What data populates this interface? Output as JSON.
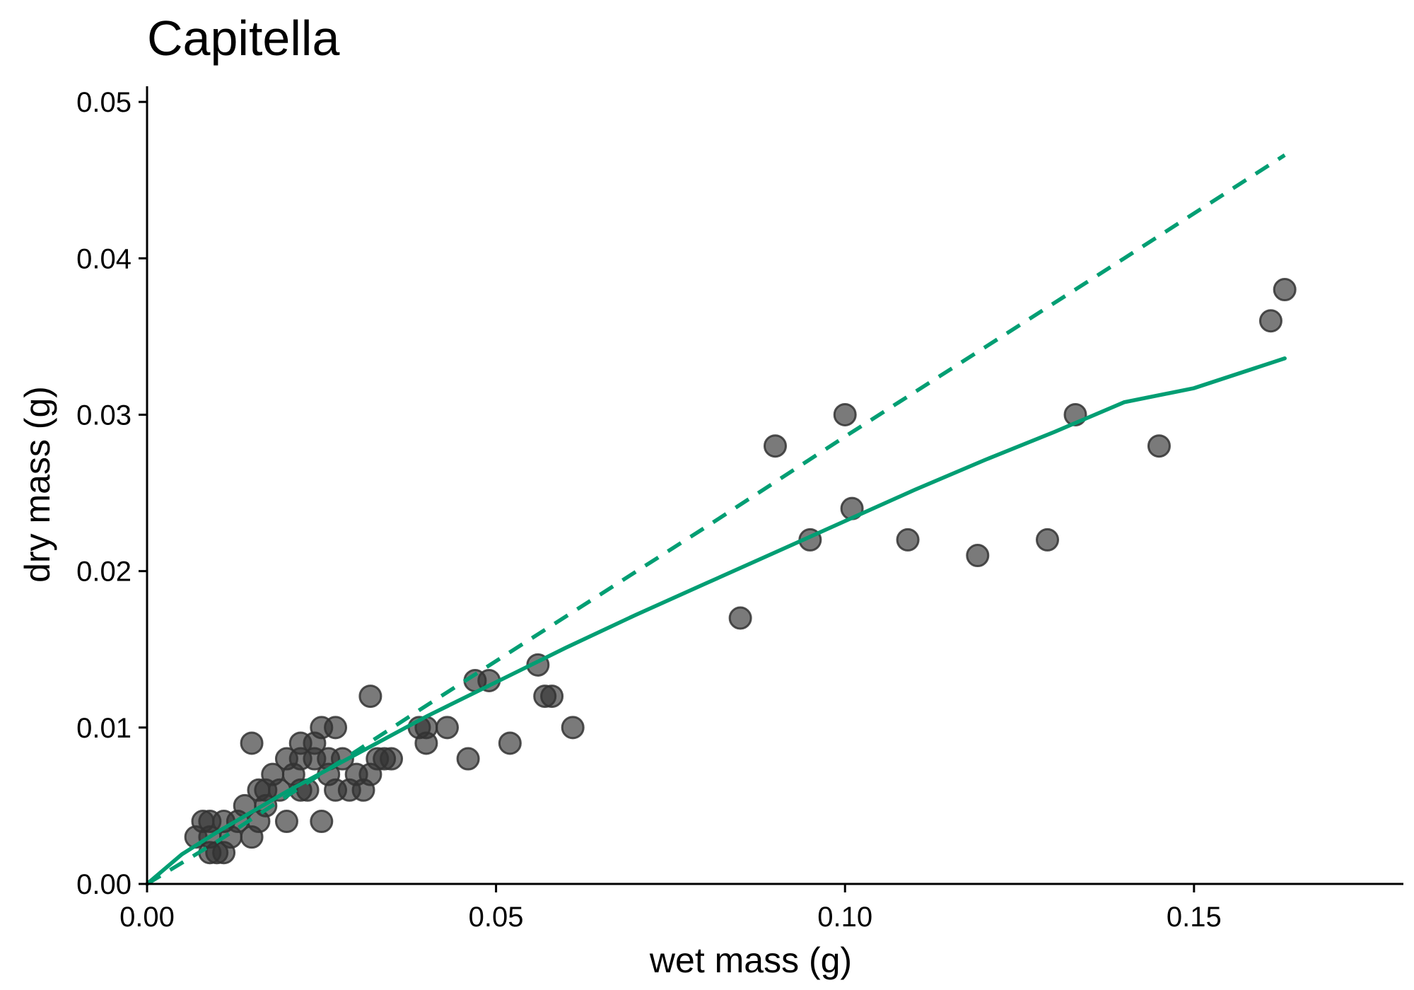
{
  "chart_data": {
    "type": "scatter",
    "title": "Capitella",
    "xlabel": "wet mass (g)",
    "ylabel": "dry mass (g)",
    "xlim": [
      0,
      0.18
    ],
    "ylim": [
      0,
      0.051
    ],
    "x_ticks": [
      0.0,
      0.05,
      0.1,
      0.15
    ],
    "x_tick_labels": [
      "0.00",
      "0.05",
      "0.10",
      "0.15"
    ],
    "y_ticks": [
      0.0,
      0.01,
      0.02,
      0.03,
      0.04,
      0.05
    ],
    "y_tick_labels": [
      "0.00",
      "0.01",
      "0.02",
      "0.03",
      "0.04",
      "0.05"
    ],
    "grid": false,
    "colors": {
      "points": "#333333",
      "fit_line": "#009E73"
    },
    "series": [
      {
        "type": "scatter",
        "points": [
          [
            0.007,
            0.003
          ],
          [
            0.008,
            0.004
          ],
          [
            0.009,
            0.004
          ],
          [
            0.009,
            0.003
          ],
          [
            0.009,
            0.002
          ],
          [
            0.01,
            0.002
          ],
          [
            0.011,
            0.004
          ],
          [
            0.011,
            0.002
          ],
          [
            0.012,
            0.003
          ],
          [
            0.013,
            0.004
          ],
          [
            0.014,
            0.005
          ],
          [
            0.015,
            0.009
          ],
          [
            0.015,
            0.003
          ],
          [
            0.016,
            0.004
          ],
          [
            0.016,
            0.006
          ],
          [
            0.017,
            0.006
          ],
          [
            0.017,
            0.005
          ],
          [
            0.018,
            0.007
          ],
          [
            0.019,
            0.006
          ],
          [
            0.02,
            0.008
          ],
          [
            0.02,
            0.004
          ],
          [
            0.021,
            0.007
          ],
          [
            0.022,
            0.009
          ],
          [
            0.022,
            0.008
          ],
          [
            0.022,
            0.006
          ],
          [
            0.023,
            0.006
          ],
          [
            0.024,
            0.008
          ],
          [
            0.024,
            0.009
          ],
          [
            0.025,
            0.01
          ],
          [
            0.025,
            0.004
          ],
          [
            0.026,
            0.007
          ],
          [
            0.026,
            0.008
          ],
          [
            0.027,
            0.01
          ],
          [
            0.027,
            0.006
          ],
          [
            0.028,
            0.008
          ],
          [
            0.029,
            0.006
          ],
          [
            0.03,
            0.007
          ],
          [
            0.031,
            0.006
          ],
          [
            0.032,
            0.012
          ],
          [
            0.032,
            0.007
          ],
          [
            0.033,
            0.008
          ],
          [
            0.034,
            0.008
          ],
          [
            0.035,
            0.008
          ],
          [
            0.039,
            0.01
          ],
          [
            0.04,
            0.01
          ],
          [
            0.04,
            0.009
          ],
          [
            0.043,
            0.01
          ],
          [
            0.046,
            0.008
          ],
          [
            0.047,
            0.013
          ],
          [
            0.049,
            0.013
          ],
          [
            0.052,
            0.009
          ],
          [
            0.056,
            0.014
          ],
          [
            0.057,
            0.012
          ],
          [
            0.058,
            0.012
          ],
          [
            0.061,
            0.01
          ],
          [
            0.085,
            0.017
          ],
          [
            0.09,
            0.028
          ],
          [
            0.095,
            0.022
          ],
          [
            0.1,
            0.03
          ],
          [
            0.101,
            0.024
          ],
          [
            0.109,
            0.022
          ],
          [
            0.119,
            0.021
          ],
          [
            0.129,
            0.022
          ],
          [
            0.133,
            0.03
          ],
          [
            0.145,
            0.028
          ],
          [
            0.161,
            0.036
          ],
          [
            0.163,
            0.038
          ]
        ]
      },
      {
        "type": "line",
        "style": "solid",
        "x": [
          0.0,
          0.005,
          0.01,
          0.02,
          0.03,
          0.04,
          0.05,
          0.06,
          0.07,
          0.08,
          0.09,
          0.1,
          0.11,
          0.12,
          0.13,
          0.14,
          0.15,
          0.163
        ],
        "y": [
          0.0,
          0.0019,
          0.0033,
          0.0059,
          0.0083,
          0.0107,
          0.0129,
          0.0151,
          0.0172,
          0.0192,
          0.0212,
          0.0232,
          0.0252,
          0.0271,
          0.0289,
          0.0308,
          0.0317,
          0.0336
        ]
      },
      {
        "type": "line",
        "style": "dashed",
        "x": [
          0.0,
          0.01,
          0.02,
          0.04,
          0.06,
          0.08,
          0.1,
          0.12,
          0.14,
          0.163
        ],
        "y": [
          0.0,
          0.0027,
          0.0056,
          0.0114,
          0.0171,
          0.0228,
          0.0286,
          0.0343,
          0.04,
          0.0466
        ]
      }
    ]
  }
}
